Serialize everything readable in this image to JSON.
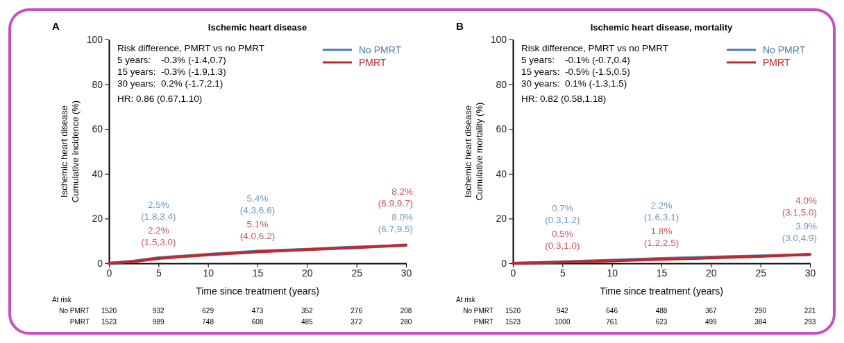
{
  "chart_data": [
    {
      "type": "line",
      "title": "Ischemic heart disease",
      "xlabel": "Time since treatment (years)",
      "ylabel": "Ischemic heart disease\nCumulative incidence (%)",
      "x": [
        0,
        2.5,
        5,
        10,
        15,
        20,
        25,
        30
      ],
      "xlim": [
        0,
        30
      ],
      "xticks": [
        0,
        5,
        10,
        15,
        20,
        25,
        30
      ],
      "ylim": [
        0,
        100
      ],
      "yticks": [
        0,
        20,
        40,
        60,
        80,
        100
      ],
      "legend": "top right",
      "grid": false,
      "series": [
        {
          "name": "No PMRT",
          "color": "#4a7fab",
          "values": [
            0,
            1,
            2.5,
            4,
            5.4,
            6.3,
            7.3,
            8.0
          ]
        },
        {
          "name": "PMRT",
          "color": "#c0282d",
          "values": [
            0,
            0.8,
            2.2,
            3.8,
            5.1,
            6.1,
            7,
            8.2
          ]
        }
      ],
      "annotations": [
        "A",
        "Risk difference, PMRT vs no PMRT",
        "5 years:    -0.3% (-1.4,0.7)",
        "15 years:  -0.3% (-1.9,1.3)",
        "30 years:  0.2% (-1.7,2.1)",
        "HR: 0.86 (0.67,1.10)",
        "At risk",
        "No PMRT 1520 932 629 473 352 276 208",
        "PMRT 1523 989 748 608 485 372 280",
        "2.5%\n(1.8,3.4)",
        "5.4%\n(4.3,6.6)",
        "8.2%\n(6.9,9.7)",
        {
          "text": "2.2%\n(1.5,3.0)",
          "x": 5,
          "y": 2.2
        },
        {
          "text": "5.1%\n(4.0,6.2)",
          "x": 15,
          "y": 5.1
        },
        {
          "text": "8.0%\n(6.7,9.5)",
          "x": 30,
          "y": 8.0
        }
      ]
    },
    {
      "type": "line",
      "title": "Ischemic heart disease, mortality",
      "xlabel": "Time since treatment (years)",
      "ylabel": "Ischemic heart disease\nCumulative mortality (%)",
      "x": [
        0,
        2.5,
        5,
        10,
        15,
        20,
        25,
        30
      ],
      "xlim": [
        0,
        30
      ],
      "xticks": [
        0,
        5,
        10,
        15,
        20,
        25,
        30
      ],
      "ylim": [
        0,
        100
      ],
      "yticks": [
        0,
        20,
        40,
        60,
        80,
        100
      ],
      "legend": "top right",
      "grid": false,
      "series": [
        {
          "name": "No PMRT",
          "color": "#4a7fab",
          "values": [
            0,
            0.3,
            0.7,
            1.4,
            2.2,
            2.8,
            3.3,
            3.9
          ]
        },
        {
          "name": "PMRT",
          "color": "#c0282d",
          "values": [
            0,
            0.2,
            0.5,
            1.1,
            1.8,
            2.4,
            3.1,
            4.0
          ]
        }
      ],
      "annotations": [
        "B",
        "Risk difference, PMRT vs no PMRT",
        "5 years:    -0.1% (-0.7,0.4)",
        "15 years:  -0.5% (-1.5,0.5)",
        "30 years:  0.1% (-1.3,1.5)",
        "HR: 0.82 (0.58,1.18)",
        "At risk",
        "No PMRT 1520 942 646 488 367 290 221",
        "PMRT 1523 1000 761 623 499 384 293",
        "0.7%\n(0.3,1.2)",
        "2.2%\n(1.6,3.1)",
        "4.0%\n(3.1,5.0)",
        {
          "text": "0.5%\n(0.3,1.0)",
          "x": 5,
          "y": 0.5
        },
        {
          "text": "1.8%\n(1.2,2.5)",
          "x": 15,
          "y": 1.8
        },
        {
          "text": "3.9%\n(3.0,4.9)",
          "x": 30,
          "y": 3.9
        }
      ]
    }
  ]
}
